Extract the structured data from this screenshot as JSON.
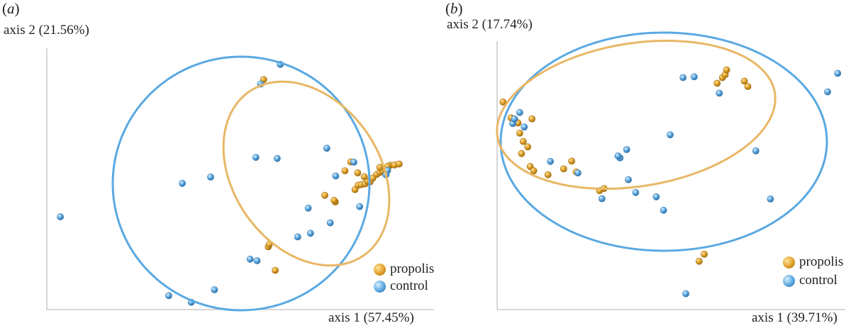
{
  "colors": {
    "propolis": "#e0a028",
    "control": "#5aa6e0",
    "propolis_ellipse": "#e8b766",
    "control_ellipse": "#5aa9e2",
    "axis": "#bfbfbf"
  },
  "legend": {
    "propolis": "propolis",
    "control": "control"
  },
  "chart_data": [
    {
      "panel": "a",
      "type": "scatter",
      "xlabel": "axis 1 (57.45%)",
      "ylabel": "axis 2 (21.56%)",
      "series": [
        {
          "name": "propolis",
          "points": [
            [
              0.59,
              0.15
            ],
            [
              0.572,
              0.24
            ],
            [
              0.575,
              0.25
            ],
            [
              0.745,
              0.412
            ],
            [
              0.742,
              0.418
            ],
            [
              0.718,
              0.437
            ],
            [
              0.796,
              0.459
            ],
            [
              0.804,
              0.476
            ],
            [
              0.812,
              0.478
            ],
            [
              0.822,
              0.481
            ],
            [
              0.828,
              0.491
            ],
            [
              0.835,
              0.489
            ],
            [
              0.842,
              0.503
            ],
            [
              0.82,
              0.508
            ],
            [
              0.852,
              0.517
            ],
            [
              0.86,
              0.524
            ],
            [
              0.866,
              0.531
            ],
            [
              0.878,
              0.532
            ],
            [
              0.887,
              0.552
            ],
            [
              0.898,
              0.553
            ],
            [
              0.91,
              0.557
            ],
            [
              0.77,
              0.531
            ],
            [
              0.785,
              0.565
            ],
            [
              0.803,
              0.523
            ],
            [
              0.86,
              0.544
            ],
            [
              0.88,
              0.548
            ],
            [
              0.56,
              0.88
            ]
          ]
        },
        {
          "name": "control",
          "points": [
            [
              0.035,
              0.355
            ],
            [
              0.315,
              0.053
            ],
            [
              0.373,
              0.028
            ],
            [
              0.433,
              0.076
            ],
            [
              0.525,
              0.193
            ],
            [
              0.543,
              0.187
            ],
            [
              0.648,
              0.278
            ],
            [
              0.681,
              0.292
            ],
            [
              0.732,
              0.332
            ],
            [
              0.552,
              0.863
            ],
            [
              0.603,
              0.938
            ],
            [
              0.423,
              0.507
            ],
            [
              0.35,
              0.483
            ],
            [
              0.54,
              0.582
            ],
            [
              0.595,
              0.578
            ],
            [
              0.793,
              0.564
            ],
            [
              0.746,
              0.511
            ],
            [
              0.723,
              0.617
            ],
            [
              0.675,
              0.388
            ],
            [
              0.808,
              0.394
            ],
            [
              0.88,
              0.532
            ],
            [
              0.876,
              0.516
            ]
          ]
        }
      ]
    },
    {
      "panel": "b",
      "type": "scatter",
      "xlabel": "axis 1 (39.71%)",
      "ylabel": "axis 2 (17.74%)",
      "series": [
        {
          "name": "propolis",
          "points": [
            [
              0.017,
              0.773
            ],
            [
              0.04,
              0.714
            ],
            [
              0.052,
              0.704
            ],
            [
              0.06,
              0.695
            ],
            [
              0.065,
              0.657
            ],
            [
              0.075,
              0.626
            ],
            [
              0.088,
              0.606
            ],
            [
              0.07,
              0.581
            ],
            [
              0.095,
              0.533
            ],
            [
              0.105,
              0.517
            ],
            [
              0.146,
              0.502
            ],
            [
              0.191,
              0.524
            ],
            [
              0.214,
              0.553
            ],
            [
              0.227,
              0.513
            ],
            [
              0.307,
              0.451
            ],
            [
              0.294,
              0.443
            ],
            [
              0.595,
              0.206
            ],
            [
              0.632,
              0.843
            ],
            [
              0.647,
              0.864
            ],
            [
              0.655,
              0.875
            ],
            [
              0.659,
              0.893
            ],
            [
              0.71,
              0.851
            ],
            [
              0.72,
              0.831
            ],
            [
              0.58,
              0.18
            ],
            [
              0.1,
              0.71
            ]
          ]
        },
        {
          "name": "control",
          "points": [
            [
              0.045,
              0.693
            ],
            [
              0.05,
              0.71
            ],
            [
              0.078,
              0.68
            ],
            [
              0.153,
              0.552
            ],
            [
              0.232,
              0.509
            ],
            [
              0.301,
              0.413
            ],
            [
              0.377,
              0.484
            ],
            [
              0.353,
              0.565
            ],
            [
              0.372,
              0.596
            ],
            [
              0.347,
              0.572
            ],
            [
              0.497,
              0.651
            ],
            [
              0.534,
              0.864
            ],
            [
              0.566,
              0.867
            ],
            [
              0.638,
              0.806
            ],
            [
              0.743,
              0.591
            ],
            [
              0.785,
              0.412
            ],
            [
              0.978,
              0.88
            ],
            [
              0.949,
              0.811
            ],
            [
              0.542,
              0.059
            ],
            [
              0.478,
              0.37
            ],
            [
              0.457,
              0.42
            ],
            [
              0.398,
              0.436
            ],
            [
              0.065,
              0.734
            ]
          ]
        }
      ]
    }
  ]
}
